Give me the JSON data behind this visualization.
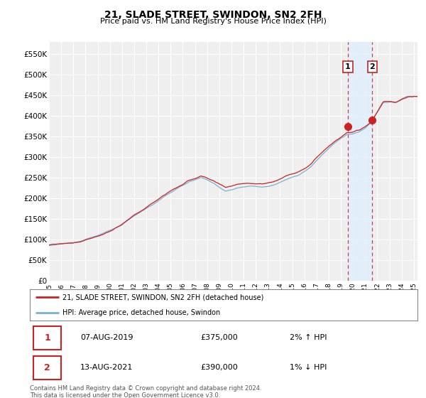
{
  "title": "21, SLADE STREET, SWINDON, SN2 2FH",
  "subtitle": "Price paid vs. HM Land Registry's House Price Index (HPI)",
  "ylabel_ticks": [
    "£0",
    "£50K",
    "£100K",
    "£150K",
    "£200K",
    "£250K",
    "£300K",
    "£350K",
    "£400K",
    "£450K",
    "£500K",
    "£550K"
  ],
  "ytick_values": [
    0,
    50000,
    100000,
    150000,
    200000,
    250000,
    300000,
    350000,
    400000,
    450000,
    500000,
    550000
  ],
  "ylim": [
    0,
    580000
  ],
  "xlim_start": 1995.0,
  "xlim_end": 2025.3,
  "xtick_years": [
    1995,
    1996,
    1997,
    1998,
    1999,
    2000,
    2001,
    2002,
    2003,
    2004,
    2005,
    2006,
    2007,
    2008,
    2009,
    2010,
    2011,
    2012,
    2013,
    2014,
    2015,
    2016,
    2017,
    2018,
    2019,
    2020,
    2021,
    2022,
    2023,
    2024,
    2025
  ],
  "hpi_color": "#7bafd4",
  "price_color": "#cc2222",
  "annotation_box_color": "#cc2222",
  "dashed_line_color": "#cc4444",
  "shade_color": "#ddeeff",
  "marker1_year": 2019.58,
  "marker1_value": 375000,
  "marker2_year": 2021.58,
  "marker2_value": 390000,
  "legend_label1": "21, SLADE STREET, SWINDON, SN2 2FH (detached house)",
  "legend_label2": "HPI: Average price, detached house, Swindon",
  "note1_date": "07-AUG-2019",
  "note1_price": "£375,000",
  "note1_hpi": "2% ↑ HPI",
  "note2_date": "13-AUG-2021",
  "note2_price": "£390,000",
  "note2_hpi": "1% ↓ HPI",
  "footer": "Contains HM Land Registry data © Crown copyright and database right 2024.\nThis data is licensed under the Open Government Licence v3.0.",
  "background_color": "#ffffff",
  "plot_bg_color": "#efefef"
}
